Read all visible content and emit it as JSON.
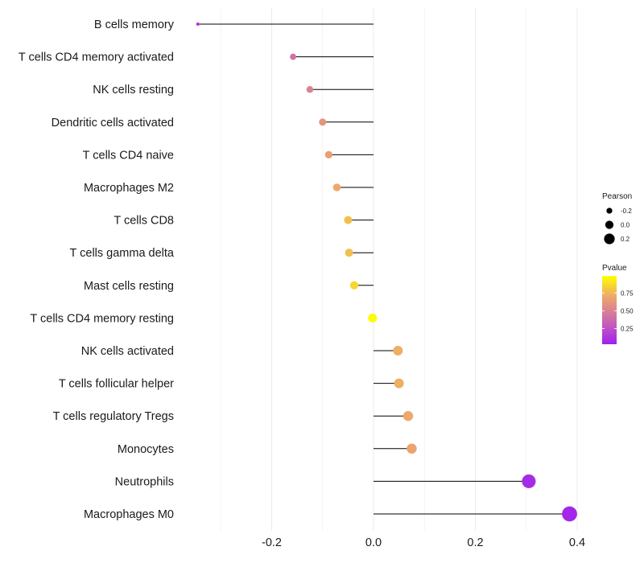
{
  "chart_data": {
    "type": "lollipop",
    "categories": [
      "B cells memory",
      "T cells CD4 memory activated",
      "NK cells resting",
      "Dendritic cells activated",
      "T cells CD4 naive",
      "Macrophages M2",
      "T cells CD8",
      "T cells gamma delta",
      "Mast cells resting",
      "T cells CD4 memory resting",
      "NK cells activated",
      "T cells follicular helper",
      "T cells regulatory  Tregs ",
      "Monocytes",
      "Neutrophils",
      "Macrophages M0"
    ],
    "values": [
      -0.345,
      -0.158,
      -0.125,
      -0.1,
      -0.088,
      -0.072,
      -0.05,
      -0.048,
      -0.038,
      -0.002,
      0.048,
      0.05,
      0.068,
      0.075,
      0.305,
      0.385
    ],
    "pvalues": [
      0.1,
      0.4,
      0.5,
      0.6,
      0.65,
      0.7,
      0.78,
      0.78,
      0.86,
      0.99,
      0.72,
      0.72,
      0.7,
      0.68,
      0.05,
      0.03
    ],
    "xlim": [
      -0.4,
      0.4
    ],
    "xticks": [
      -0.2,
      0.0,
      0.2,
      0.4
    ],
    "xtick_labels": [
      "-0.2",
      "0.0",
      "0.2",
      "0.4"
    ],
    "grid": true,
    "legend": {
      "size_title": "Pearson",
      "size_entries": [
        {
          "label": "-0.2",
          "value": -0.2
        },
        {
          "label": "0.0",
          "value": 0.0
        },
        {
          "label": "0.2",
          "value": 0.2
        }
      ],
      "color_title": "Pvalue",
      "color_ticks": [
        {
          "label": "0.75",
          "value": 0.75
        },
        {
          "label": "0.50",
          "value": 0.5
        },
        {
          "label": "0.25",
          "value": 0.25
        }
      ],
      "color_low": "#a020f0",
      "color_high": "#ffff00"
    }
  }
}
